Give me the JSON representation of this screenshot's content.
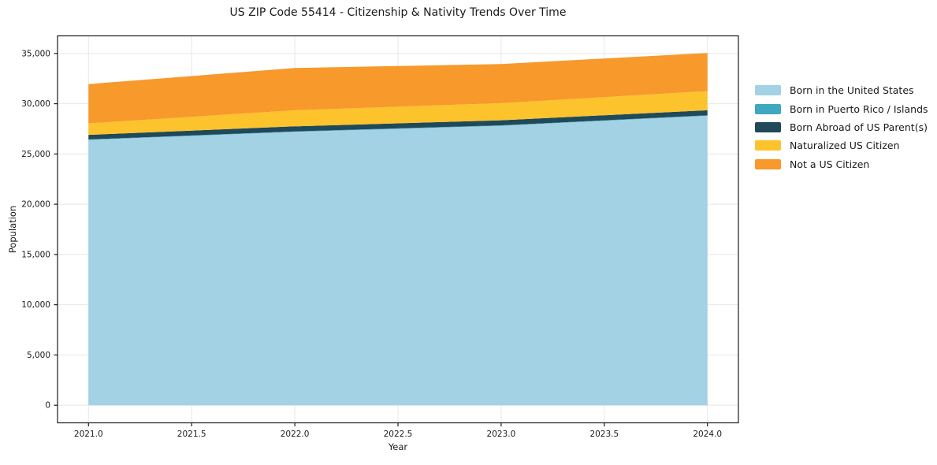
{
  "chart_data": {
    "type": "area",
    "stacked": true,
    "title": "US ZIP Code 55414 - Citizenship & Nativity Trends Over Time",
    "xlabel": "Year",
    "ylabel": "Population",
    "x": [
      2021,
      2022,
      2023,
      2024
    ],
    "series": [
      {
        "name": "Born in the United States",
        "color": "#a2d2e3",
        "values": [
          26400,
          27200,
          27800,
          28800
        ]
      },
      {
        "name": "Born in Puerto Rico / Islands",
        "color": "#3fa7c0",
        "values": [
          50,
          50,
          50,
          50
        ]
      },
      {
        "name": "Born Abroad of US Parent(s)",
        "color": "#20495a",
        "values": [
          450,
          500,
          500,
          500
        ]
      },
      {
        "name": "Naturalized US Citizen",
        "color": "#fcc32d",
        "values": [
          1150,
          1600,
          1700,
          1900
        ]
      },
      {
        "name": "Not a US Citizen",
        "color": "#f8992b",
        "values": [
          3900,
          4200,
          3900,
          3800
        ]
      }
    ],
    "stacked_totals": [
      31950,
      33550,
      33950,
      35050
    ],
    "x_ticks": [
      2021.0,
      2021.5,
      2022.0,
      2022.5,
      2023.0,
      2023.5,
      2024.0
    ],
    "x_tick_labels": [
      "2021.0",
      "2021.5",
      "2022.0",
      "2022.5",
      "2023.0",
      "2023.5",
      "2024.0"
    ],
    "y_ticks": [
      0,
      5000,
      10000,
      15000,
      20000,
      25000,
      30000,
      35000
    ],
    "y_tick_labels": [
      "0",
      "5,000",
      "10,000",
      "15,000",
      "20,000",
      "25,000",
      "30,000",
      "35,000"
    ],
    "xlim": [
      2020.85,
      2024.15
    ],
    "ylim": [
      -1750,
      36750
    ],
    "grid": true,
    "legend_position": "right"
  },
  "colors": {
    "background": "#ffffff",
    "grid": "#e7e7e7",
    "spine": "#1a1a1a",
    "tick": "#1a1a1a",
    "text": "#1a1a1a"
  }
}
